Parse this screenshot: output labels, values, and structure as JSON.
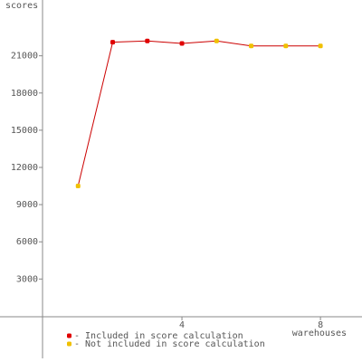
{
  "chart_data": {
    "type": "line",
    "ylabel": "scores",
    "xlabel": "warehouses",
    "x": [
      1,
      2,
      3,
      4,
      5,
      6,
      7,
      8
    ],
    "line_color": "#cc0000",
    "series": [
      {
        "name": "- Included in score calculation",
        "color": "#e00000",
        "values": [
          null,
          22100,
          22200,
          22000,
          null,
          null,
          null,
          null
        ]
      },
      {
        "name": "- Not included in score calculation",
        "color": "#f0c000",
        "values": [
          10500,
          null,
          null,
          null,
          22200,
          21800,
          21800,
          21800
        ]
      }
    ],
    "xlim": [
      0,
      9.2
    ],
    "xticks": [
      4,
      8
    ],
    "ylim": [
      -3400,
      25500
    ],
    "yticks": [
      3000,
      6000,
      9000,
      12000,
      15000,
      18000,
      21000
    ]
  }
}
